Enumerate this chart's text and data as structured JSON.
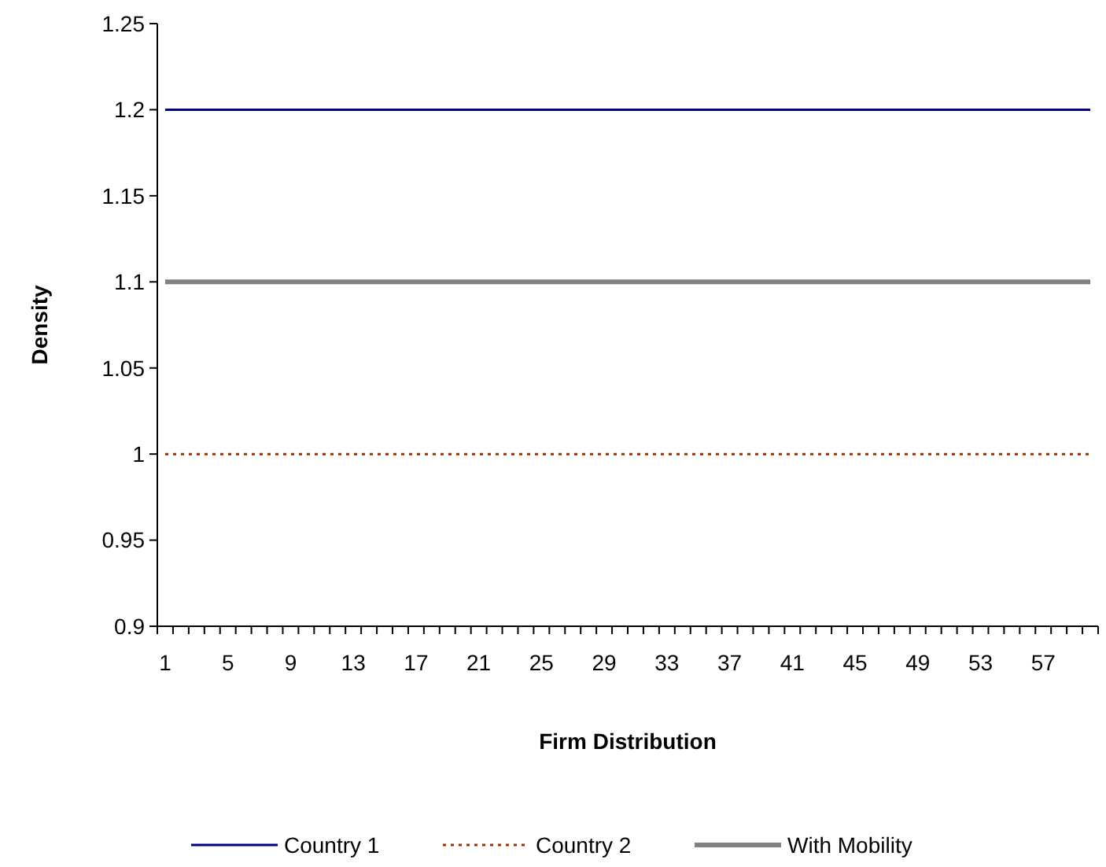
{
  "chart_data": {
    "type": "line",
    "xlabel": "Firm Distribution",
    "ylabel": "Density",
    "categories": [
      "1",
      null,
      null,
      null,
      "5",
      null,
      null,
      null,
      "9",
      null,
      null,
      null,
      "13",
      null,
      null,
      null,
      "17",
      null,
      null,
      null,
      "21",
      null,
      null,
      null,
      "25",
      null,
      null,
      null,
      "29",
      null,
      null,
      null,
      "33",
      null,
      null,
      null,
      "37",
      null,
      null,
      null,
      "41",
      null,
      null,
      null,
      "45",
      null,
      null,
      null,
      "49",
      null,
      null,
      null,
      "53",
      null,
      null,
      null,
      "57",
      null,
      null,
      null
    ],
    "series": [
      {
        "name": "Country 1",
        "color": "#000080",
        "line_style": "solid",
        "values": [
          1.2,
          1.2,
          1.2,
          1.2,
          1.2,
          1.2,
          1.2,
          1.2,
          1.2,
          1.2,
          1.2,
          1.2,
          1.2,
          1.2,
          1.2,
          1.2,
          1.2,
          1.2,
          1.2,
          1.2,
          1.2,
          1.2,
          1.2,
          1.2,
          1.2,
          1.2,
          1.2,
          1.2,
          1.2,
          1.2,
          1.2,
          1.2,
          1.2,
          1.2,
          1.2,
          1.2,
          1.2,
          1.2,
          1.2,
          1.2,
          1.2,
          1.2,
          1.2,
          1.2,
          1.2,
          1.2,
          1.2,
          1.2,
          1.2,
          1.2,
          1.2,
          1.2,
          1.2,
          1.2,
          1.2,
          1.2,
          1.2,
          1.2,
          1.2,
          1.2
        ]
      },
      {
        "name": "Country 2",
        "color": "#993300",
        "line_style": "dotted",
        "values": [
          1,
          1,
          1,
          1,
          1,
          1,
          1,
          1,
          1,
          1,
          1,
          1,
          1,
          1,
          1,
          1,
          1,
          1,
          1,
          1,
          1,
          1,
          1,
          1,
          1,
          1,
          1,
          1,
          1,
          1,
          1,
          1,
          1,
          1,
          1,
          1,
          1,
          1,
          1,
          1,
          1,
          1,
          1,
          1,
          1,
          1,
          1,
          1,
          1,
          1,
          1,
          1,
          1,
          1,
          1,
          1,
          1,
          1,
          1,
          1
        ]
      },
      {
        "name": "With Mobility",
        "color": "#808080",
        "line_style": "solid",
        "values": [
          1.1,
          1.1,
          1.1,
          1.1,
          1.1,
          1.1,
          1.1,
          1.1,
          1.1,
          1.1,
          1.1,
          1.1,
          1.1,
          1.1,
          1.1,
          1.1,
          1.1,
          1.1,
          1.1,
          1.1,
          1.1,
          1.1,
          1.1,
          1.1,
          1.1,
          1.1,
          1.1,
          1.1,
          1.1,
          1.1,
          1.1,
          1.1,
          1.1,
          1.1,
          1.1,
          1.1,
          1.1,
          1.1,
          1.1,
          1.1,
          1.1,
          1.1,
          1.1,
          1.1,
          1.1,
          1.1,
          1.1,
          1.1,
          1.1,
          1.1,
          1.1,
          1.1,
          1.1,
          1.1,
          1.1,
          1.1,
          1.1,
          1.1,
          1.1,
          1.1
        ]
      }
    ],
    "ylim": [
      0.9,
      1.25
    ],
    "yticks": [
      0.9,
      0.95,
      1,
      1.05,
      1.1,
      1.15,
      1.2,
      1.25
    ],
    "grid": false,
    "legend": "bottom",
    "marker": "none"
  }
}
